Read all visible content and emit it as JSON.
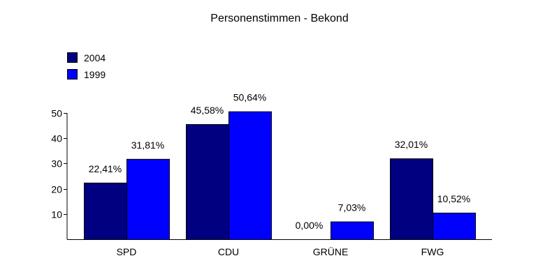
{
  "chart_data": {
    "type": "bar",
    "title": "Personenstimmen - Bekond",
    "xlabel": "",
    "ylabel": "",
    "categories": [
      "SPD",
      "CDU",
      "GRÜNE",
      "FWG"
    ],
    "series": [
      {
        "name": "2004",
        "color": "#000080",
        "values": [
          22.41,
          45.58,
          0.0,
          32.01
        ],
        "labels": [
          "22,41%",
          "45,58%",
          "0,00%",
          "32,01%"
        ]
      },
      {
        "name": "1999",
        "color": "#0000ff",
        "values": [
          31.81,
          50.64,
          7.03,
          10.52
        ],
        "labels": [
          "31,81%",
          "50,64%",
          "7,03%",
          "10,52%"
        ]
      }
    ],
    "ylim": [
      0,
      50
    ],
    "yticks": [
      10,
      20,
      30,
      40,
      50
    ],
    "grid": false,
    "legend_position": "top-left"
  }
}
